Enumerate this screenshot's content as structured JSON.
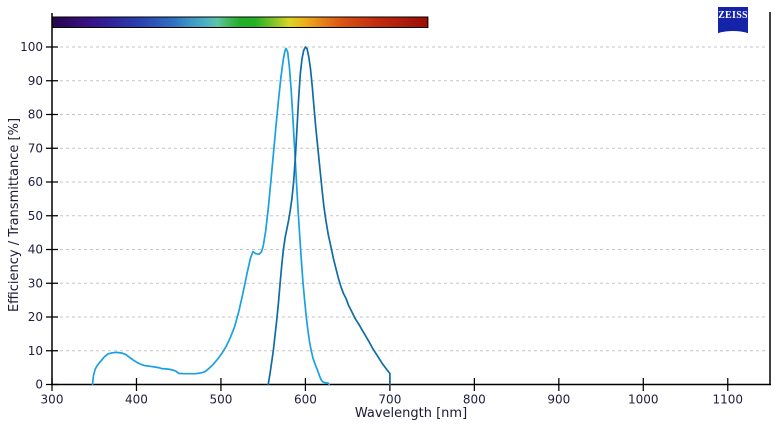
{
  "logo": {
    "text": "ZEISS",
    "background": "#1523A8"
  },
  "axis": {
    "line_color": "#000000",
    "tick_label_color": "#1E1E3F",
    "title_color": "#1B1B35"
  },
  "chart_data": {
    "type": "line",
    "title": "",
    "xlabel": "Wavelength [nm]",
    "ylabel": "Efficiency / Transmittance [%]",
    "xlim": [
      300,
      1150
    ],
    "ylim": [
      0,
      100
    ],
    "x_ticks": [
      300,
      400,
      500,
      600,
      700,
      800,
      900,
      1000,
      1100
    ],
    "y_ticks": [
      0,
      10,
      20,
      30,
      40,
      50,
      60,
      70,
      80,
      90,
      100
    ],
    "grid": {
      "horizontal": true,
      "vertical": false,
      "style": "dashed",
      "color": "#C6C6C6"
    },
    "legend": "none",
    "series": [
      {
        "name": "excitation-spectrum-light-blue",
        "color": "#1BA0E2",
        "points": [
          [
            348,
            0
          ],
          [
            349,
            2.5
          ],
          [
            351,
            4.5
          ],
          [
            354,
            5.8
          ],
          [
            358,
            7
          ],
          [
            362,
            8.2
          ],
          [
            366,
            9
          ],
          [
            371,
            9.4
          ],
          [
            377,
            9.5
          ],
          [
            383,
            9.3
          ],
          [
            388,
            8.8
          ],
          [
            392,
            8
          ],
          [
            396,
            7.3
          ],
          [
            400,
            6.6
          ],
          [
            405,
            6
          ],
          [
            410,
            5.6
          ],
          [
            416,
            5.4
          ],
          [
            421,
            5.2
          ],
          [
            426,
            5
          ],
          [
            430,
            4.7
          ],
          [
            437,
            4.6
          ],
          [
            443,
            4.3
          ],
          [
            447,
            3.9
          ],
          [
            450,
            3.3
          ],
          [
            456,
            3.2
          ],
          [
            463,
            3.2
          ],
          [
            470,
            3.2
          ],
          [
            476,
            3.4
          ],
          [
            481,
            3.8
          ],
          [
            486,
            4.8
          ],
          [
            491,
            6
          ],
          [
            496,
            7.5
          ],
          [
            501,
            9.2
          ],
          [
            506,
            11.2
          ],
          [
            511,
            13.8
          ],
          [
            516,
            17
          ],
          [
            521,
            21.5
          ],
          [
            526,
            27
          ],
          [
            531,
            33
          ],
          [
            535,
            37.5
          ],
          [
            538,
            39.4
          ],
          [
            541,
            38.8
          ],
          [
            545,
            38.6
          ],
          [
            548,
            39.3
          ],
          [
            550,
            41
          ],
          [
            553,
            45.5
          ],
          [
            556,
            52
          ],
          [
            559,
            60
          ],
          [
            562,
            68
          ],
          [
            565,
            76
          ],
          [
            568,
            84
          ],
          [
            571,
            91
          ],
          [
            574,
            96.5
          ],
          [
            576,
            99
          ],
          [
            577,
            99.6
          ],
          [
            579,
            98.5
          ],
          [
            581,
            94
          ],
          [
            583,
            87.5
          ],
          [
            585,
            80
          ],
          [
            587,
            71
          ],
          [
            589,
            62
          ],
          [
            591,
            53
          ],
          [
            593,
            45
          ],
          [
            595,
            37.5
          ],
          [
            597,
            30.5
          ],
          [
            599,
            25
          ],
          [
            601,
            20
          ],
          [
            603,
            16
          ],
          [
            605,
            12.6
          ],
          [
            607,
            9.9
          ],
          [
            609,
            7.8
          ],
          [
            611,
            6.3
          ],
          [
            613,
            5.1
          ],
          [
            615,
            3.7
          ],
          [
            617,
            2.3
          ],
          [
            619,
            1.2
          ],
          [
            621,
            0.7
          ],
          [
            624,
            0.5
          ],
          [
            627,
            0.4
          ],
          [
            628,
            0
          ]
        ]
      },
      {
        "name": "emission-spectrum-dark-blue",
        "color": "#0F6CA5",
        "points": [
          [
            556,
            0
          ],
          [
            558,
            3
          ],
          [
            560,
            6.5
          ],
          [
            562,
            10
          ],
          [
            564,
            14.5
          ],
          [
            566,
            19
          ],
          [
            568,
            24
          ],
          [
            570,
            30
          ],
          [
            572,
            35.5
          ],
          [
            574,
            40
          ],
          [
            576,
            43.5
          ],
          [
            578,
            46
          ],
          [
            580,
            48.5
          ],
          [
            582,
            51.5
          ],
          [
            584,
            55
          ],
          [
            586,
            60
          ],
          [
            588,
            67
          ],
          [
            590,
            76
          ],
          [
            592,
            85
          ],
          [
            594,
            92
          ],
          [
            596,
            96.5
          ],
          [
            598,
            99
          ],
          [
            600,
            100
          ],
          [
            602,
            99.5
          ],
          [
            604,
            97
          ],
          [
            606,
            93.5
          ],
          [
            608,
            88.5
          ],
          [
            610,
            82.5
          ],
          [
            612,
            77
          ],
          [
            614,
            72
          ],
          [
            616,
            67
          ],
          [
            618,
            62
          ],
          [
            620,
            57
          ],
          [
            622,
            52.5
          ],
          [
            624,
            49
          ],
          [
            627,
            44.5
          ],
          [
            630,
            41
          ],
          [
            633,
            37.5
          ],
          [
            636,
            34.5
          ],
          [
            639,
            31.5
          ],
          [
            642,
            29
          ],
          [
            645,
            27
          ],
          [
            648,
            25.5
          ],
          [
            651,
            23.5
          ],
          [
            655,
            21.5
          ],
          [
            659,
            19.5
          ],
          [
            663,
            18
          ],
          [
            667,
            16.2
          ],
          [
            671,
            14.5
          ],
          [
            675,
            12.8
          ],
          [
            679,
            11
          ],
          [
            683,
            9.4
          ],
          [
            687,
            7.8
          ],
          [
            691,
            6.2
          ],
          [
            694,
            5.2
          ],
          [
            697,
            4.2
          ],
          [
            699,
            3.6
          ],
          [
            700,
            3.3
          ],
          [
            700,
            0
          ]
        ]
      }
    ],
    "spectrum_bar": {
      "wavelength_start": 300,
      "wavelength_end": 745,
      "gradient_stops": [
        [
          0.0,
          "#26064E"
        ],
        [
          0.09,
          "#3A0F82"
        ],
        [
          0.15,
          "#31219A"
        ],
        [
          0.23,
          "#2B3FB0"
        ],
        [
          0.32,
          "#2E6FC2"
        ],
        [
          0.37,
          "#3F97C4"
        ],
        [
          0.41,
          "#4BB2C2"
        ],
        [
          0.44,
          "#5FC4A6"
        ],
        [
          0.47,
          "#3FB95A"
        ],
        [
          0.5,
          "#23AE2C"
        ],
        [
          0.54,
          "#23B223"
        ],
        [
          0.59,
          "#84C32A"
        ],
        [
          0.63,
          "#D8D623"
        ],
        [
          0.67,
          "#ECB11C"
        ],
        [
          0.72,
          "#E4801B"
        ],
        [
          0.77,
          "#DA5514"
        ],
        [
          0.86,
          "#C22D10"
        ],
        [
          1.0,
          "#9B0D07"
        ]
      ]
    }
  }
}
